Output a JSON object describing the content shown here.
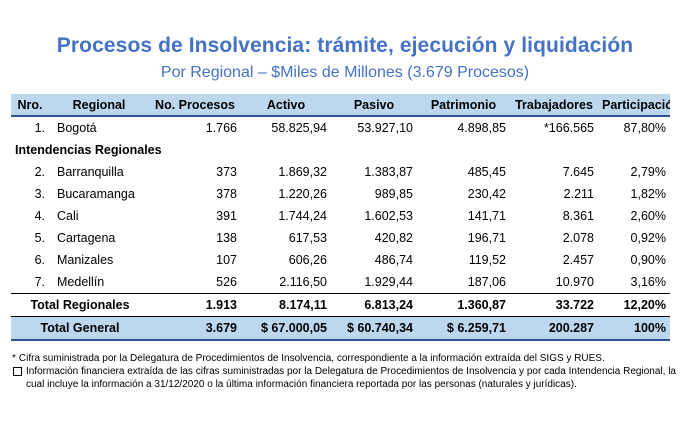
{
  "header": {
    "title": "Procesos de Insolvencia: trámite, ejecución y liquidación",
    "subtitle": "Por Regional – $Miles de Millones (3.679 Procesos)"
  },
  "table": {
    "columns": [
      "Nro.",
      "Regional",
      "No. Procesos",
      "Activo",
      "Pasivo",
      "Patrimonio",
      "Trabajadores",
      "Participación"
    ],
    "bogota": {
      "nro": "1.",
      "regional": "Bogotá",
      "procesos": "1.766",
      "activo": "58.825,94",
      "pasivo": "53.927,10",
      "patrimonio": "4.898,85",
      "trabajadores": "*166.565",
      "participacion": "87,80%"
    },
    "section_label": "Intendencias Regionales",
    "regionales": [
      {
        "nro": "2.",
        "regional": "Barranquilla",
        "procesos": "373",
        "activo": "1.869,32",
        "pasivo": "1.383,87",
        "patrimonio": "485,45",
        "trabajadores": "7.645",
        "participacion": "2,79%"
      },
      {
        "nro": "3.",
        "regional": "Bucaramanga",
        "procesos": "378",
        "activo": "1.220,26",
        "pasivo": "989,85",
        "patrimonio": "230,42",
        "trabajadores": "2.211",
        "participacion": "1,82%"
      },
      {
        "nro": "4.",
        "regional": "Cali",
        "procesos": "391",
        "activo": "1.744,24",
        "pasivo": "1.602,53",
        "patrimonio": "141,71",
        "trabajadores": "8.361",
        "participacion": "2,60%"
      },
      {
        "nro": "5.",
        "regional": "Cartagena",
        "procesos": "138",
        "activo": "617,53",
        "pasivo": "420,82",
        "patrimonio": "196,71",
        "trabajadores": "2.078",
        "participacion": "0,92%"
      },
      {
        "nro": "6.",
        "regional": "Manizales",
        "procesos": "107",
        "activo": "606,26",
        "pasivo": "486,74",
        "patrimonio": "119,52",
        "trabajadores": "2.457",
        "participacion": "0,90%"
      },
      {
        "nro": "7.",
        "regional": "Medellín",
        "procesos": "526",
        "activo": "2.116,50",
        "pasivo": "1.929,44",
        "patrimonio": "187,06",
        "trabajadores": "10.970",
        "participacion": "3,16%"
      }
    ],
    "total_regionales": {
      "label": "Total Regionales",
      "procesos": "1.913",
      "activo": "8.174,11",
      "pasivo": "6.813,24",
      "patrimonio": "1.360,87",
      "trabajadores": "33.722",
      "participacion": "12,20%"
    },
    "total_general": {
      "label": "Total General",
      "procesos": "3.679",
      "activo": "$ 67.000,05",
      "pasivo": "$ 60.740,34",
      "patrimonio": "$ 6.259,71",
      "trabajadores": "200.287",
      "participacion": "100%"
    }
  },
  "notes": {
    "note1_marker": "*",
    "note1": "Cifra suministrada por la Delegatura de Procedimientos de Insolvencia, correspondiente a la información extraída del SIGS y RUES.",
    "note2": "Información financiera extraída de las cifras suministradas por la Delegatura de Procedimientos de Insolvencia y por cada Intendencia Regional, la cual incluye la información a 31/12/2020 o la última información financiera reportada por las personas (naturales y jurídicas)."
  }
}
